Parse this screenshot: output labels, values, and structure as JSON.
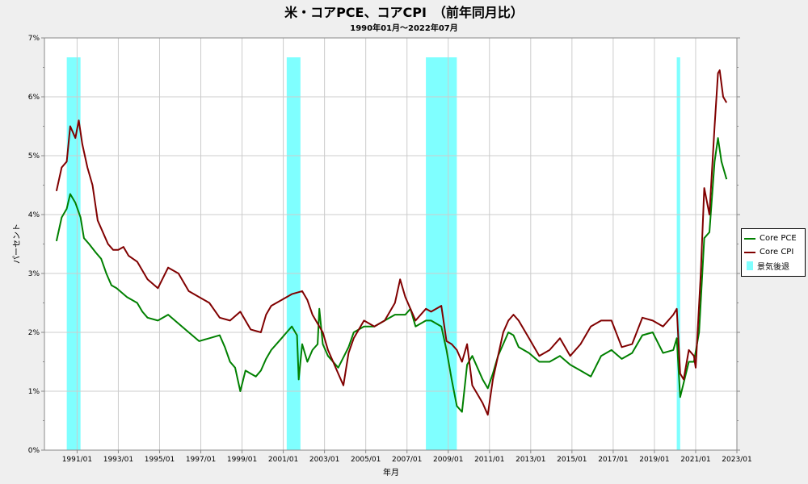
{
  "chart_data": {
    "type": "line",
    "title": "米・コアPCE、コアCPI　（前年同月比）",
    "subtitle": "1990年01月～2022年07月",
    "xlabel": "年月",
    "ylabel": "パーセント",
    "ylim": [
      0,
      7
    ],
    "xlim": [
      "1989/06",
      "2023/01"
    ],
    "grid": true,
    "legend_position": "right",
    "y_ticks": [
      "0%",
      "1%",
      "2%",
      "3%",
      "4%",
      "5%",
      "6%",
      "7%"
    ],
    "x_ticks": [
      "1991/01",
      "1993/01",
      "1995/01",
      "1997/01",
      "1999/01",
      "2001/01",
      "2003/01",
      "2005/01",
      "2007/01",
      "2009/01",
      "2011/01",
      "2013/01",
      "2015/01",
      "2017/01",
      "2019/01",
      "2021/01",
      "2023/01"
    ],
    "recessions": [
      {
        "start": "1990/07",
        "end": "1991/03"
      },
      {
        "start": "2001/03",
        "end": "2001/11"
      },
      {
        "start": "2007/12",
        "end": "2009/06"
      },
      {
        "start": "2020/02",
        "end": "2020/04"
      }
    ],
    "series": [
      {
        "name": "Core PCE",
        "color": "#008000",
        "points": [
          [
            "1990/01",
            3.55
          ],
          [
            "1990/04",
            3.95
          ],
          [
            "1990/07",
            4.1
          ],
          [
            "1990/09",
            4.35
          ],
          [
            "1990/12",
            4.2
          ],
          [
            "1991/03",
            3.95
          ],
          [
            "1991/05",
            3.6
          ],
          [
            "1991/08",
            3.5
          ],
          [
            "1991/12",
            3.35
          ],
          [
            "1992/03",
            3.25
          ],
          [
            "1992/06",
            3.0
          ],
          [
            "1992/09",
            2.8
          ],
          [
            "1992/12",
            2.75
          ],
          [
            "1993/06",
            2.6
          ],
          [
            "1993/12",
            2.5
          ],
          [
            "1994/03",
            2.35
          ],
          [
            "1994/06",
            2.25
          ],
          [
            "1994/12",
            2.2
          ],
          [
            "1995/06",
            2.3
          ],
          [
            "1995/12",
            2.15
          ],
          [
            "1996/06",
            2.0
          ],
          [
            "1996/12",
            1.85
          ],
          [
            "1997/06",
            1.9
          ],
          [
            "1997/12",
            1.95
          ],
          [
            "1998/03",
            1.75
          ],
          [
            "1998/06",
            1.5
          ],
          [
            "1998/09",
            1.4
          ],
          [
            "1998/12",
            1.0
          ],
          [
            "1999/03",
            1.35
          ],
          [
            "1999/06",
            1.3
          ],
          [
            "1999/09",
            1.25
          ],
          [
            "1999/12",
            1.35
          ],
          [
            "2000/03",
            1.55
          ],
          [
            "2000/06",
            1.7
          ],
          [
            "2000/12",
            1.9
          ],
          [
            "2001/03",
            2.0
          ],
          [
            "2001/06",
            2.1
          ],
          [
            "2001/09",
            1.95
          ],
          [
            "2001/10",
            1.2
          ],
          [
            "2001/12",
            1.8
          ],
          [
            "2002/03",
            1.5
          ],
          [
            "2002/06",
            1.7
          ],
          [
            "2002/09",
            1.8
          ],
          [
            "2002/10",
            2.4
          ],
          [
            "2002/12",
            1.8
          ],
          [
            "2003/03",
            1.6
          ],
          [
            "2003/09",
            1.4
          ],
          [
            "2004/03",
            1.75
          ],
          [
            "2004/06",
            2.0
          ],
          [
            "2004/12",
            2.1
          ],
          [
            "2005/06",
            2.1
          ],
          [
            "2005/12",
            2.2
          ],
          [
            "2006/06",
            2.3
          ],
          [
            "2006/12",
            2.3
          ],
          [
            "2007/03",
            2.4
          ],
          [
            "2007/06",
            2.1
          ],
          [
            "2007/12",
            2.2
          ],
          [
            "2008/03",
            2.2
          ],
          [
            "2008/09",
            2.1
          ],
          [
            "2008/12",
            1.7
          ],
          [
            "2009/03",
            1.2
          ],
          [
            "2009/06",
            0.75
          ],
          [
            "2009/09",
            0.65
          ],
          [
            "2009/12",
            1.45
          ],
          [
            "2010/03",
            1.6
          ],
          [
            "2010/06",
            1.4
          ],
          [
            "2010/09",
            1.2
          ],
          [
            "2010/12",
            1.05
          ],
          [
            "2011/03",
            1.3
          ],
          [
            "2011/06",
            1.6
          ],
          [
            "2011/09",
            1.8
          ],
          [
            "2011/12",
            2.0
          ],
          [
            "2012/03",
            1.95
          ],
          [
            "2012/06",
            1.75
          ],
          [
            "2012/12",
            1.65
          ],
          [
            "2013/06",
            1.5
          ],
          [
            "2013/12",
            1.5
          ],
          [
            "2014/06",
            1.6
          ],
          [
            "2014/12",
            1.45
          ],
          [
            "2015/06",
            1.35
          ],
          [
            "2015/12",
            1.25
          ],
          [
            "2016/06",
            1.6
          ],
          [
            "2016/12",
            1.7
          ],
          [
            "2017/06",
            1.55
          ],
          [
            "2017/12",
            1.65
          ],
          [
            "2018/06",
            1.95
          ],
          [
            "2018/12",
            2.0
          ],
          [
            "2019/06",
            1.65
          ],
          [
            "2019/12",
            1.7
          ],
          [
            "2020/02",
            1.9
          ],
          [
            "2020/04",
            0.9
          ],
          [
            "2020/09",
            1.5
          ],
          [
            "2020/12",
            1.5
          ],
          [
            "2021/03",
            2.0
          ],
          [
            "2021/06",
            3.6
          ],
          [
            "2021/09",
            3.7
          ],
          [
            "2021/12",
            4.9
          ],
          [
            "2022/02",
            5.3
          ],
          [
            "2022/04",
            4.9
          ],
          [
            "2022/06",
            4.7
          ],
          [
            "2022/07",
            4.6
          ]
        ]
      },
      {
        "name": "Core CPI",
        "color": "#800000",
        "points": [
          [
            "1990/01",
            4.4
          ],
          [
            "1990/04",
            4.8
          ],
          [
            "1990/07",
            4.9
          ],
          [
            "1990/09",
            5.5
          ],
          [
            "1990/12",
            5.3
          ],
          [
            "1991/02",
            5.6
          ],
          [
            "1991/04",
            5.2
          ],
          [
            "1991/07",
            4.8
          ],
          [
            "1991/10",
            4.5
          ],
          [
            "1992/01",
            3.9
          ],
          [
            "1992/04",
            3.7
          ],
          [
            "1992/07",
            3.5
          ],
          [
            "1992/10",
            3.4
          ],
          [
            "1993/01",
            3.4
          ],
          [
            "1993/04",
            3.45
          ],
          [
            "1993/07",
            3.3
          ],
          [
            "1993/12",
            3.2
          ],
          [
            "1994/06",
            2.9
          ],
          [
            "1994/12",
            2.75
          ],
          [
            "1995/06",
            3.1
          ],
          [
            "1995/12",
            3.0
          ],
          [
            "1996/06",
            2.7
          ],
          [
            "1996/12",
            2.6
          ],
          [
            "1997/06",
            2.5
          ],
          [
            "1997/12",
            2.25
          ],
          [
            "1998/06",
            2.2
          ],
          [
            "1998/12",
            2.35
          ],
          [
            "1999/03",
            2.2
          ],
          [
            "1999/06",
            2.05
          ],
          [
            "1999/12",
            2.0
          ],
          [
            "2000/03",
            2.3
          ],
          [
            "2000/06",
            2.45
          ],
          [
            "2000/12",
            2.55
          ],
          [
            "2001/06",
            2.65
          ],
          [
            "2001/12",
            2.7
          ],
          [
            "2002/03",
            2.55
          ],
          [
            "2002/06",
            2.3
          ],
          [
            "2002/09",
            2.15
          ],
          [
            "2002/12",
            2.0
          ],
          [
            "2003/03",
            1.7
          ],
          [
            "2003/06",
            1.5
          ],
          [
            "2003/09",
            1.3
          ],
          [
            "2003/12",
            1.1
          ],
          [
            "2004/03",
            1.65
          ],
          [
            "2004/06",
            1.9
          ],
          [
            "2004/12",
            2.2
          ],
          [
            "2005/06",
            2.1
          ],
          [
            "2005/12",
            2.2
          ],
          [
            "2006/06",
            2.5
          ],
          [
            "2006/09",
            2.9
          ],
          [
            "2006/12",
            2.6
          ],
          [
            "2007/06",
            2.2
          ],
          [
            "2007/12",
            2.4
          ],
          [
            "2008/03",
            2.35
          ],
          [
            "2008/06",
            2.4
          ],
          [
            "2008/09",
            2.45
          ],
          [
            "2008/12",
            1.85
          ],
          [
            "2009/03",
            1.8
          ],
          [
            "2009/06",
            1.7
          ],
          [
            "2009/09",
            1.5
          ],
          [
            "2009/12",
            1.8
          ],
          [
            "2010/03",
            1.1
          ],
          [
            "2010/06",
            0.95
          ],
          [
            "2010/09",
            0.8
          ],
          [
            "2010/12",
            0.6
          ],
          [
            "2011/03",
            1.2
          ],
          [
            "2011/06",
            1.6
          ],
          [
            "2011/09",
            2.0
          ],
          [
            "2011/12",
            2.2
          ],
          [
            "2012/03",
            2.3
          ],
          [
            "2012/06",
            2.2
          ],
          [
            "2012/12",
            1.9
          ],
          [
            "2013/06",
            1.6
          ],
          [
            "2013/12",
            1.7
          ],
          [
            "2014/06",
            1.9
          ],
          [
            "2014/12",
            1.6
          ],
          [
            "2015/06",
            1.8
          ],
          [
            "2015/12",
            2.1
          ],
          [
            "2016/06",
            2.2
          ],
          [
            "2016/12",
            2.2
          ],
          [
            "2017/06",
            1.75
          ],
          [
            "2017/12",
            1.8
          ],
          [
            "2018/06",
            2.25
          ],
          [
            "2018/12",
            2.2
          ],
          [
            "2019/06",
            2.1
          ],
          [
            "2019/12",
            2.3
          ],
          [
            "2020/02",
            2.4
          ],
          [
            "2020/04",
            1.3
          ],
          [
            "2020/06",
            1.2
          ],
          [
            "2020/09",
            1.7
          ],
          [
            "2020/12",
            1.6
          ],
          [
            "2021/01",
            1.4
          ],
          [
            "2021/04",
            3.0
          ],
          [
            "2021/06",
            4.45
          ],
          [
            "2021/09",
            4.0
          ],
          [
            "2021/12",
            5.5
          ],
          [
            "2022/02",
            6.4
          ],
          [
            "2022/03",
            6.45
          ],
          [
            "2022/05",
            6.0
          ],
          [
            "2022/07",
            5.9
          ]
        ]
      }
    ],
    "legend_items": [
      {
        "label": "Core PCE",
        "color": "#008000",
        "kind": "line"
      },
      {
        "label": "Core CPI",
        "color": "#800000",
        "kind": "line"
      },
      {
        "label": "景気後退",
        "color": "#7fffff",
        "kind": "box"
      }
    ]
  }
}
